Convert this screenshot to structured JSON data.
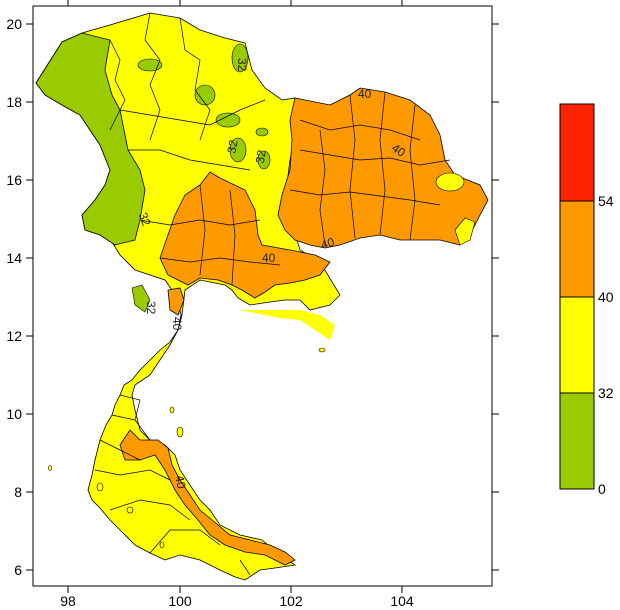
{
  "map": {
    "x_ticks": [
      "98",
      "100",
      "102",
      "104"
    ],
    "y_ticks": [
      "6",
      "8",
      "10",
      "12",
      "14",
      "16",
      "18",
      "20"
    ],
    "contour_labels": [
      "32",
      "32",
      "32",
      "32",
      "32",
      "40",
      "40",
      "40",
      "40",
      "40"
    ],
    "colors": {
      "green": "#99cc00",
      "yellow": "#ffff00",
      "orange": "#ff9900",
      "red": "#ff2200",
      "border": "#000000"
    }
  },
  "legend": {
    "labels": [
      "54",
      "40",
      "32",
      "0"
    ]
  }
}
